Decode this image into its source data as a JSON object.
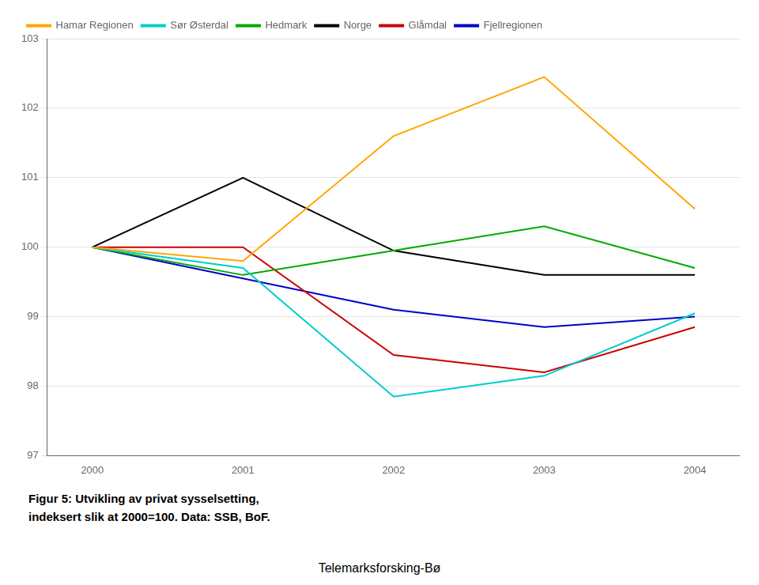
{
  "chart_data": {
    "type": "line",
    "x": [
      2000,
      2001,
      2002,
      2003,
      2004
    ],
    "series": [
      {
        "name": "Hamar Regionen",
        "color": "#FFA500",
        "values": [
          100.0,
          99.8,
          101.6,
          102.45,
          100.55
        ]
      },
      {
        "name": "Sør Østerdal",
        "color": "#00CCCC",
        "values": [
          100.0,
          99.7,
          97.85,
          98.15,
          99.05
        ]
      },
      {
        "name": "Hedmark",
        "color": "#00AA00",
        "values": [
          100.0,
          99.6,
          99.95,
          100.3,
          99.7
        ]
      },
      {
        "name": "Norge",
        "color": "#000000",
        "values": [
          100.0,
          101.0,
          99.95,
          99.6,
          99.6
        ]
      },
      {
        "name": "Glåmdal",
        "color": "#CC0000",
        "values": [
          100.0,
          100.0,
          98.45,
          98.2,
          98.85
        ]
      },
      {
        "name": "Fjellregionen",
        "color": "#0000CC",
        "values": [
          100.0,
          99.55,
          99.1,
          98.85,
          99.0
        ]
      }
    ],
    "xlim": [
      1999.7,
      2004.3
    ],
    "xticks": [
      2000,
      2001,
      2002,
      2003,
      2004
    ],
    "ylim": [
      97,
      103
    ],
    "yticks": [
      97,
      98,
      99,
      100,
      101,
      102,
      103
    ],
    "grid": "y",
    "legend": "upper left",
    "annotations": [
      "Figur 5: Utvikling av privat sysselsetting,",
      "indeksert slik at 2000=100.  Data: SSB, BoF.",
      "Telemarksforsking-Bø"
    ]
  }
}
